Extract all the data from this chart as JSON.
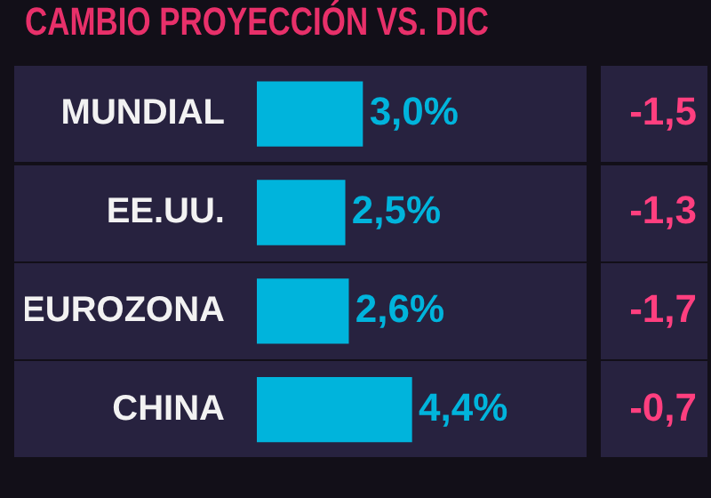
{
  "chart_data": {
    "type": "bar",
    "orientation": "horizontal",
    "title": "CAMBIO PROYECCIÓN VS. DIC",
    "categories": [
      "MUNDIAL",
      "EE.UU.",
      "EUROZONA",
      "CHINA"
    ],
    "values": [
      3.0,
      2.5,
      2.6,
      4.4
    ],
    "color": "#00b4dc",
    "value_labels": [
      "3,0%",
      "2,5%",
      "2,6%",
      "4,4%"
    ],
    "annotations": [
      "-1,5",
      "-1,3",
      "-1,7",
      "-0,7"
    ],
    "legend": false,
    "tick_labels": "y"
  }
}
